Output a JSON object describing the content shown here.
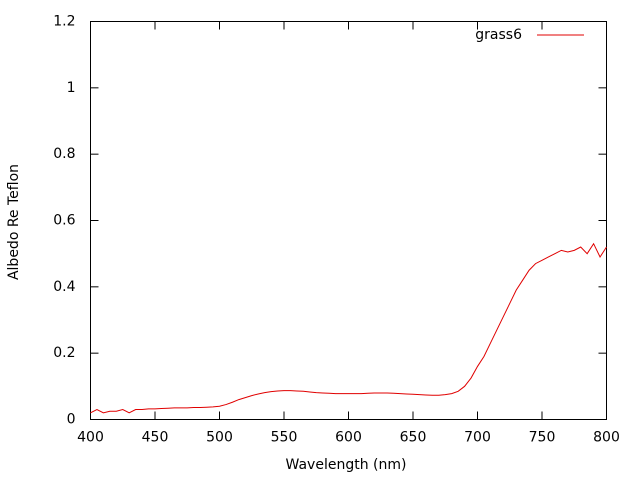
{
  "chart_data": {
    "type": "line",
    "x_label": "Wavelength (nm)",
    "y_label": "Albedo Re Teflon",
    "x": [
      400,
      405,
      410,
      415,
      420,
      425,
      430,
      435,
      440,
      445,
      450,
      455,
      460,
      465,
      470,
      475,
      480,
      485,
      490,
      495,
      500,
      505,
      510,
      515,
      520,
      525,
      530,
      535,
      540,
      545,
      550,
      555,
      560,
      565,
      570,
      575,
      580,
      585,
      590,
      595,
      600,
      605,
      610,
      615,
      620,
      625,
      630,
      635,
      640,
      645,
      650,
      655,
      660,
      665,
      670,
      675,
      680,
      685,
      690,
      695,
      700,
      705,
      710,
      715,
      720,
      725,
      730,
      735,
      740,
      745,
      750,
      755,
      760,
      765,
      770,
      775,
      780,
      785,
      790,
      795,
      800
    ],
    "series": [
      {
        "name": "grass6",
        "color": "#e00000",
        "values": [
          0.02,
          0.03,
          0.02,
          0.025,
          0.025,
          0.03,
          0.02,
          0.03,
          0.03,
          0.032,
          0.032,
          0.033,
          0.034,
          0.035,
          0.035,
          0.035,
          0.036,
          0.036,
          0.037,
          0.038,
          0.04,
          0.045,
          0.052,
          0.06,
          0.066,
          0.072,
          0.077,
          0.081,
          0.084,
          0.086,
          0.087,
          0.087,
          0.086,
          0.085,
          0.083,
          0.081,
          0.08,
          0.079,
          0.078,
          0.078,
          0.078,
          0.078,
          0.078,
          0.079,
          0.08,
          0.08,
          0.08,
          0.079,
          0.078,
          0.077,
          0.076,
          0.075,
          0.074,
          0.073,
          0.073,
          0.075,
          0.078,
          0.085,
          0.1,
          0.125,
          0.16,
          0.19,
          0.23,
          0.27,
          0.31,
          0.35,
          0.39,
          0.42,
          0.45,
          0.47,
          0.48,
          0.49,
          0.5,
          0.51,
          0.505,
          0.51,
          0.52,
          0.5,
          0.53,
          0.49,
          0.52
        ]
      }
    ],
    "xlim": [
      400,
      800
    ],
    "xticks": [
      400,
      450,
      500,
      550,
      600,
      650,
      700,
      750,
      800
    ],
    "ylim": [
      0,
      1.2
    ],
    "yticks": [
      0,
      0.2,
      0.4,
      0.6,
      0.8,
      1,
      1.2
    ],
    "grid": false,
    "legend": "top-right"
  }
}
